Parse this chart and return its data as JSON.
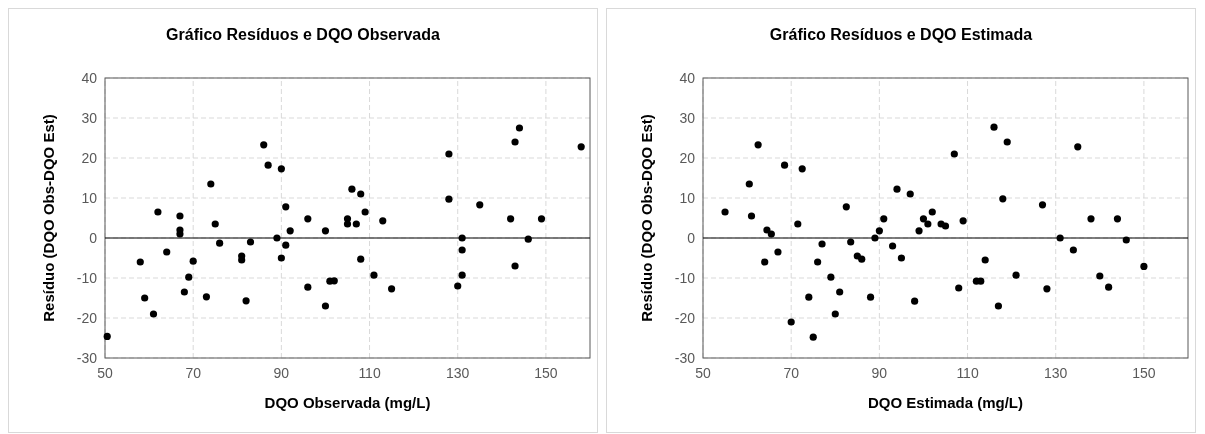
{
  "chart_data": [
    {
      "type": "scatter",
      "title": "Gráfico Resíduos e DQO Observada",
      "xlabel": "DQO Observada (mg/L)",
      "ylabel": "Resíduo (DQO Obs-DQO Est)",
      "xlim": [
        50,
        160
      ],
      "xticks": [
        50,
        70,
        90,
        110,
        130,
        150
      ],
      "ylim": [
        -30,
        40
      ],
      "yticks": [
        -30,
        -20,
        -10,
        0,
        10,
        20,
        30,
        40
      ],
      "grid": true,
      "marker": "circle",
      "ref_lines": [
        {
          "axis": "y",
          "value": 0,
          "color": "#000000"
        }
      ],
      "series": [
        {
          "color": "#000000",
          "x": [
            50.5,
            58,
            59,
            61,
            62,
            64,
            67,
            67,
            67,
            68,
            69,
            70,
            73,
            74,
            75,
            76,
            81,
            81,
            82,
            83,
            86,
            87,
            89,
            90,
            90,
            91,
            91,
            92,
            96,
            96,
            100,
            100,
            101,
            102,
            105,
            105,
            106,
            107,
            108,
            108,
            109,
            111,
            113,
            115,
            128,
            128,
            130,
            131,
            131,
            131,
            135,
            142,
            143,
            143,
            144,
            146,
            149,
            158
          ],
          "values": [
            -24.6,
            -6,
            -15,
            -19,
            6.5,
            -3.5,
            5.5,
            2,
            1,
            -13.5,
            -9.8,
            -5.8,
            -14.7,
            13.5,
            3.5,
            -1.3,
            -4.5,
            -5.5,
            -15.7,
            -1,
            23.3,
            18.2,
            0,
            17.3,
            -5,
            7.8,
            -1.8,
            1.8,
            -12.3,
            4.8,
            -17,
            1.8,
            -10.8,
            -10.7,
            4.8,
            3.5,
            12.2,
            3.5,
            11,
            -5.3,
            6.5,
            -9.3,
            4.3,
            -12.7,
            21,
            9.7,
            -12,
            0,
            -3,
            -9.3,
            8.3,
            4.8,
            24,
            -7,
            27.5,
            -0.3,
            4.8,
            22.8
          ]
        }
      ]
    },
    {
      "type": "scatter",
      "title": "Gráfico Resíduos e DQO Estimada",
      "xlabel": "DQO Estimada (mg/L)",
      "ylabel": "Resíduo (DQO Obs-DQO Est)",
      "xlim": [
        50,
        160
      ],
      "xticks": [
        50,
        70,
        90,
        110,
        130,
        150
      ],
      "ylim": [
        -30,
        40
      ],
      "yticks": [
        -30,
        -20,
        -10,
        0,
        10,
        20,
        30,
        40
      ],
      "grid": true,
      "marker": "circle",
      "ref_lines": [
        {
          "axis": "y",
          "value": 0,
          "color": "#000000"
        }
      ],
      "series": [
        {
          "color": "#000000",
          "x": [
            55,
            60.5,
            61,
            62.5,
            64,
            64.5,
            65.5,
            67,
            68.5,
            70,
            71.5,
            72.5,
            74,
            75,
            76,
            77,
            79,
            80,
            81,
            82.5,
            83.5,
            85,
            86,
            88,
            89,
            90,
            91,
            93,
            94,
            95,
            97,
            98,
            99,
            100,
            101,
            102,
            104,
            105,
            107,
            108,
            109,
            112,
            113,
            114,
            116,
            117,
            118,
            119,
            121,
            127,
            128,
            131,
            134,
            135,
            138,
            140,
            142,
            144,
            146,
            150
          ],
          "values": [
            6.5,
            13.5,
            5.5,
            23.3,
            -6,
            2,
            1,
            -3.5,
            18.2,
            -21,
            3.5,
            17.3,
            -14.8,
            -24.8,
            -6,
            -1.5,
            -9.8,
            -19,
            -13.5,
            7.8,
            -1,
            -4.5,
            -5.3,
            -14.8,
            0,
            1.8,
            4.8,
            -2,
            12.2,
            -5,
            11,
            -15.8,
            1.8,
            4.8,
            3.5,
            6.5,
            3.5,
            3,
            21,
            -12.5,
            4.3,
            -10.8,
            -10.8,
            -5.5,
            27.7,
            -17,
            9.8,
            24,
            -9.3,
            8.3,
            -12.7,
            0,
            -3,
            22.8,
            4.8,
            -9.5,
            -12.3,
            4.8,
            -0.5,
            -7.1
          ]
        }
      ]
    }
  ]
}
